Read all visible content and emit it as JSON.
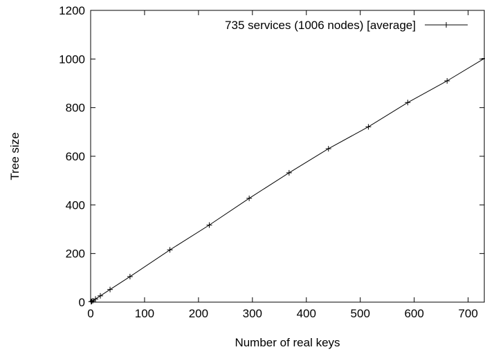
{
  "chart_data": {
    "type": "line",
    "title": "",
    "xlabel": "Number of real keys",
    "ylabel": "Tree size",
    "xlim": [
      0,
      730
    ],
    "ylim": [
      0,
      1200
    ],
    "xticks": [
      0,
      100,
      200,
      300,
      400,
      500,
      600,
      700
    ],
    "yticks": [
      0,
      200,
      400,
      600,
      800,
      1000,
      1200
    ],
    "grid": false,
    "legend": "top-right",
    "series": [
      {
        "name": "735 services (1006 nodes) [average]",
        "marker": "plus",
        "color": "#000000",
        "x": [
          1,
          2,
          4,
          9,
          18,
          36,
          73,
          147,
          220,
          294,
          368,
          441,
          515,
          588,
          661,
          730
        ],
        "y": [
          2,
          3,
          6,
          13,
          26,
          52,
          105,
          215,
          317,
          427,
          532,
          631,
          721,
          821,
          910,
          1002
        ]
      }
    ]
  }
}
